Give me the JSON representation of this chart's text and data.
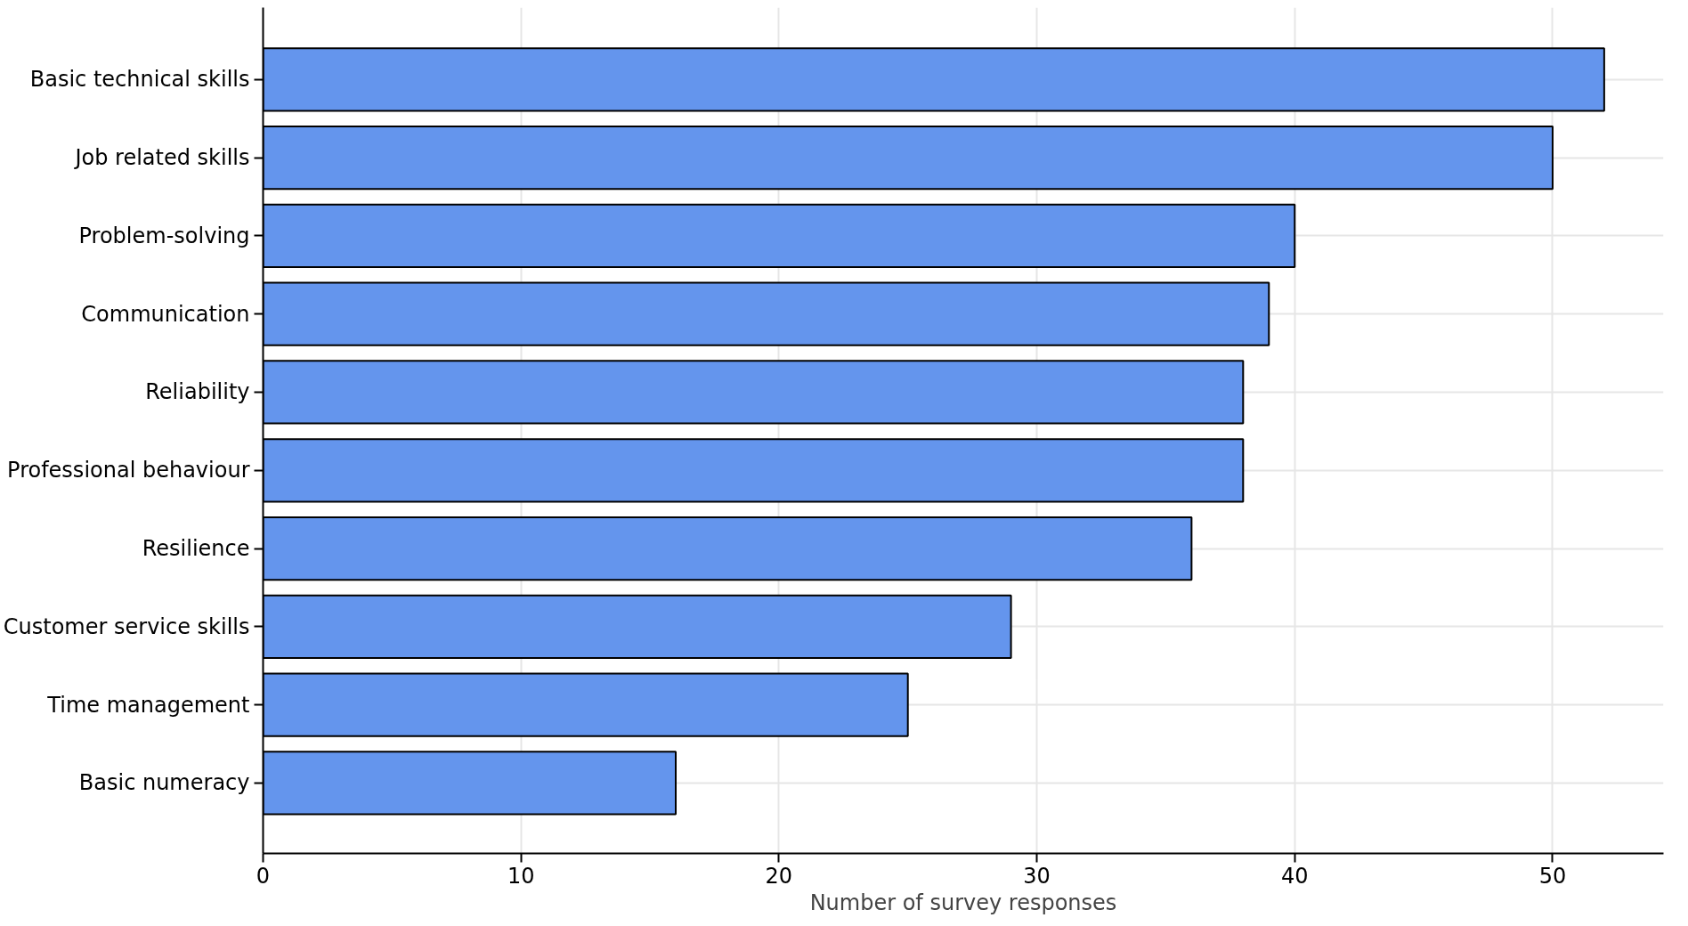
{
  "chart_data": {
    "type": "bar",
    "orientation": "horizontal",
    "xlabel": "Number of survey responses",
    "categories": [
      "Basic technical skills",
      "Job related skills",
      "Problem-solving",
      "Communication",
      "Reliability",
      "Professional behaviour",
      "Resilience",
      "Customer service skills",
      "Time management",
      "Basic numeracy"
    ],
    "values": [
      52,
      50,
      40,
      39,
      38,
      38,
      36,
      29,
      25,
      16
    ],
    "color": "#6495ed",
    "xlim": [
      0,
      54.3
    ],
    "xticks": [
      0,
      10,
      20,
      30,
      40,
      50
    ],
    "grid": true
  }
}
